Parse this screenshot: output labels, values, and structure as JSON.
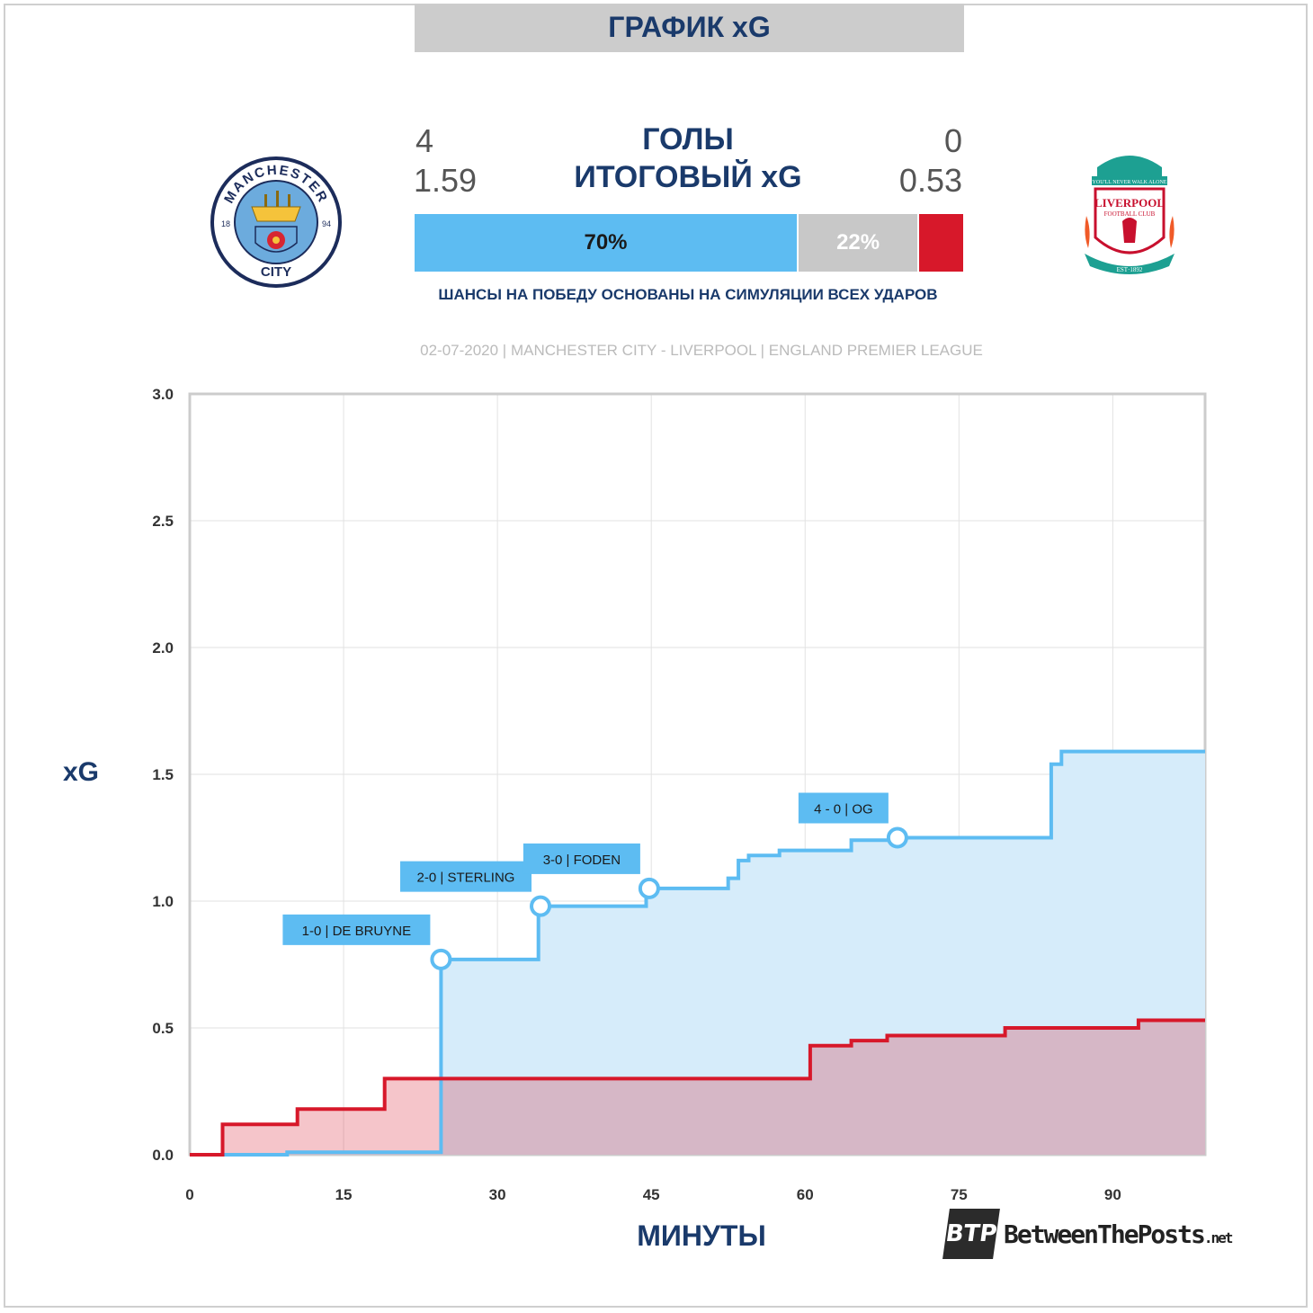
{
  "header": {
    "title": "ГРАФИК xG",
    "goals_label": "ГОЛЫ",
    "xg_label": "ИТОГОВЫЙ xG",
    "home_goals": "4",
    "away_goals": "0",
    "home_xg": "1.59",
    "away_xg": "0.53"
  },
  "probabilities": {
    "home_pct": "70%",
    "draw_pct": "22%",
    "away_pct": "",
    "home_value": 70,
    "draw_value": 22,
    "away_value": 8,
    "caption": "ШАНСЫ НА ПОБЕДУ ОСНОВАНЫ НА СИМУЛЯЦИИ ВСЕХ УДАРОВ"
  },
  "match_info": "02-07-2020 | MANCHESTER CITY - LIVERPOOL | ENGLAND PREMIER LEAGUE",
  "logos": {
    "home": {
      "ring_text": "MANCHESTER",
      "bottom_text": "CITY",
      "left_num": "18",
      "right_num": "94"
    },
    "away": {
      "top_text": "YOU'LL NEVER WALK ALONE",
      "name": "LIVERPOOL",
      "sub": "FOOTBALL CLUB",
      "est": "EST·1892"
    }
  },
  "brand": {
    "box": "BTP",
    "name": "BetweenThePosts",
    "suffix": ".net"
  },
  "colors": {
    "home": "#5dbcf2",
    "home_fill": "#d6ecfa",
    "away": "#d7182a",
    "away_fill": "#f4c4c8",
    "overlap_fill": "#d8b8c8",
    "draw": "#c8c8c8",
    "navy": "#1a3a6b"
  },
  "chart_data": {
    "type": "line",
    "xlabel": "МИНУТЫ",
    "ylabel": "xG",
    "xlim": [
      0,
      99
    ],
    "ylim": [
      0,
      3
    ],
    "x_ticks": [
      0,
      15,
      30,
      45,
      60,
      75,
      90
    ],
    "y_ticks": [
      "0.0",
      "0.5",
      "1.0",
      "1.5",
      "2.0",
      "2.5",
      "3.0"
    ],
    "grid": true,
    "series": [
      {
        "team": "home",
        "points": [
          [
            0,
            0
          ],
          [
            9.5,
            0
          ],
          [
            9.5,
            0.01
          ],
          [
            24.5,
            0.01
          ],
          [
            24.5,
            0.77
          ],
          [
            34,
            0.77
          ],
          [
            34,
            0.98
          ],
          [
            44.5,
            0.98
          ],
          [
            44.5,
            1.05
          ],
          [
            52.5,
            1.05
          ],
          [
            52.5,
            1.09
          ],
          [
            53.5,
            1.09
          ],
          [
            53.5,
            1.16
          ],
          [
            54.5,
            1.16
          ],
          [
            54.5,
            1.18
          ],
          [
            57.5,
            1.18
          ],
          [
            57.5,
            1.2
          ],
          [
            64.5,
            1.2
          ],
          [
            64.5,
            1.24
          ],
          [
            69,
            1.24
          ],
          [
            69,
            1.25
          ],
          [
            84,
            1.25
          ],
          [
            84,
            1.54
          ],
          [
            85,
            1.54
          ],
          [
            85,
            1.59
          ],
          [
            99,
            1.59
          ]
        ]
      },
      {
        "team": "away",
        "points": [
          [
            0,
            0
          ],
          [
            3.2,
            0
          ],
          [
            3.2,
            0.12
          ],
          [
            10.5,
            0.12
          ],
          [
            10.5,
            0.18
          ],
          [
            19,
            0.18
          ],
          [
            19,
            0.3
          ],
          [
            60.5,
            0.3
          ],
          [
            60.5,
            0.43
          ],
          [
            64.5,
            0.43
          ],
          [
            64.5,
            0.45
          ],
          [
            68,
            0.45
          ],
          [
            68,
            0.47
          ],
          [
            79.5,
            0.47
          ],
          [
            79.5,
            0.5
          ],
          [
            92.5,
            0.5
          ],
          [
            92.5,
            0.53
          ],
          [
            99,
            0.53
          ]
        ]
      }
    ],
    "goals": [
      {
        "minute": 24.5,
        "xg": 0.77,
        "label": "1-0 | DE BRUYNE"
      },
      {
        "minute": 34.2,
        "xg": 0.98,
        "label": "2-0 | STERLING"
      },
      {
        "minute": 44.8,
        "xg": 1.05,
        "label": "3-0 | FODEN"
      },
      {
        "minute": 69,
        "xg": 1.25,
        "label": "4 - 0 | OG"
      }
    ]
  }
}
